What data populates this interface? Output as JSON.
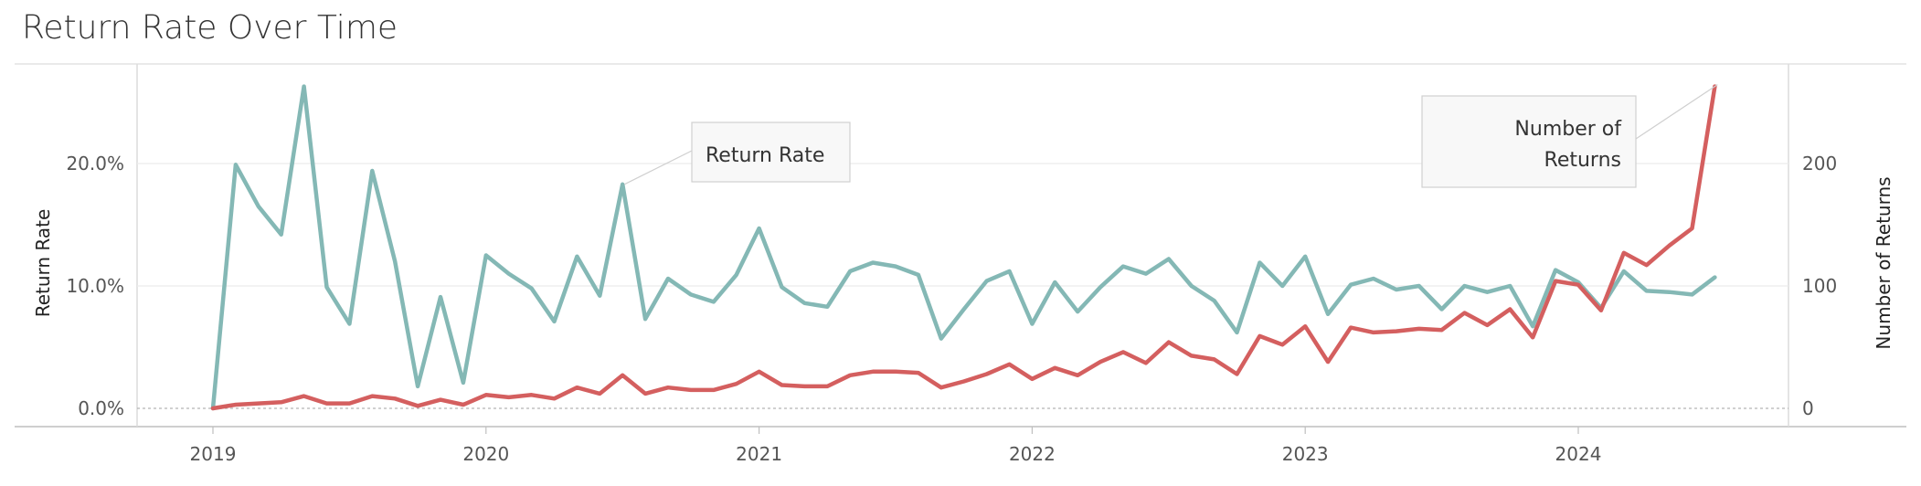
{
  "chart_data": {
    "type": "line",
    "title": "Return Rate Over Time",
    "x_ticks": [
      "2019",
      "2020",
      "2021",
      "2022",
      "2023",
      "2024"
    ],
    "left_axis": {
      "label": "Return Rate",
      "ticks": [
        "0.0%",
        "10.0%",
        "20.0%"
      ],
      "range": [
        0,
        0.28
      ]
    },
    "right_axis": {
      "label": "Number of Returns",
      "ticks": [
        "0",
        "100",
        "200"
      ],
      "range": [
        0,
        280
      ]
    },
    "colors": {
      "return_rate": "#84b8b5",
      "number_of_returns": "#d45f5f"
    },
    "series": [
      {
        "name": "Return Rate",
        "axis": "left",
        "t": [
          0,
          1,
          2,
          3,
          4,
          5,
          6,
          7,
          8,
          9,
          10,
          11,
          12,
          13,
          14,
          15,
          16,
          17,
          18,
          19,
          20,
          21,
          22,
          23,
          24,
          25,
          26,
          27,
          28,
          29,
          30,
          31,
          32,
          33,
          34,
          35,
          36,
          37,
          38,
          39,
          40,
          41,
          42,
          43,
          44,
          45,
          46,
          47,
          48,
          49,
          50,
          51,
          52,
          53,
          54,
          55,
          56,
          57,
          58,
          59,
          60,
          61,
          62,
          63,
          64,
          65,
          66
        ],
        "values": [
          0.0,
          0.199,
          0.165,
          0.142,
          0.263,
          0.099,
          0.069,
          0.194,
          0.12,
          0.018,
          0.091,
          0.021,
          0.125,
          0.11,
          0.098,
          0.071,
          0.124,
          0.092,
          0.183,
          0.073,
          0.106,
          0.093,
          0.087,
          0.109,
          0.147,
          0.099,
          0.086,
          0.083,
          0.112,
          0.119,
          0.116,
          0.109,
          0.057,
          0.081,
          0.104,
          0.112,
          0.069,
          0.103,
          0.079,
          0.099,
          0.116,
          0.11,
          0.122,
          0.1,
          0.088,
          0.062,
          0.119,
          0.1,
          0.124,
          0.077,
          0.101,
          0.106,
          0.097,
          0.1,
          0.081,
          0.1,
          0.095,
          0.1,
          0.067,
          0.113,
          0.103,
          0.082,
          0.112,
          0.096,
          0.095,
          0.093,
          0.107
        ]
      },
      {
        "name": "Number of Returns",
        "axis": "right",
        "t": [
          0,
          1,
          2,
          3,
          4,
          5,
          6,
          7,
          8,
          9,
          10,
          11,
          12,
          13,
          14,
          15,
          16,
          17,
          18,
          19,
          20,
          21,
          22,
          23,
          24,
          25,
          26,
          27,
          28,
          29,
          30,
          31,
          32,
          33,
          34,
          35,
          36,
          37,
          38,
          39,
          40,
          41,
          42,
          43,
          44,
          45,
          46,
          47,
          48,
          49,
          50,
          51,
          52,
          53,
          54,
          55,
          56,
          57,
          58,
          59,
          60,
          61,
          62,
          63,
          64,
          65,
          66
        ],
        "values": [
          0,
          3,
          4,
          5,
          10,
          4,
          4,
          10,
          8,
          2,
          7,
          3,
          11,
          9,
          11,
          8,
          17,
          12,
          27,
          12,
          17,
          15,
          15,
          20,
          30,
          19,
          18,
          18,
          27,
          30,
          30,
          29,
          17,
          22,
          28,
          36,
          24,
          33,
          27,
          38,
          46,
          37,
          54,
          43,
          40,
          28,
          59,
          52,
          67,
          38,
          66,
          62,
          63,
          65,
          64,
          78,
          68,
          81,
          58,
          104,
          101,
          80,
          127,
          117,
          133,
          147,
          263
        ]
      }
    ],
    "annotations": [
      {
        "text": "Return Rate",
        "series": "Return Rate",
        "t": 18
      },
      {
        "text_lines": [
          "Number of",
          "Returns"
        ],
        "series": "Number of Returns",
        "t": 66
      }
    ]
  }
}
